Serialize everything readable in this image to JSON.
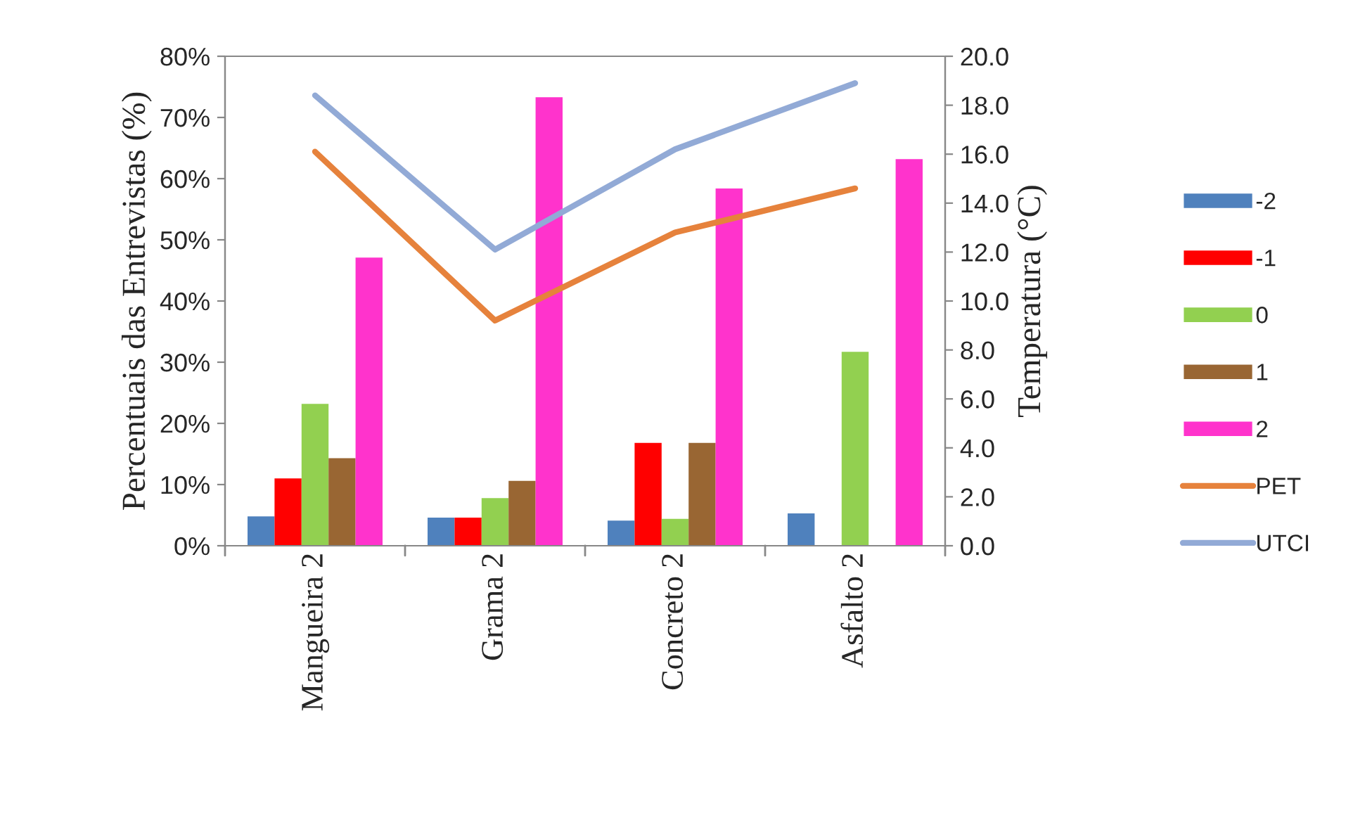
{
  "chart_data": {
    "type": "bar",
    "categories": [
      "Mangueira 2",
      "Grama 2",
      "Concreto 2",
      "Asfalto 2"
    ],
    "ylabel": "Percentuais das Entrevistas (%)",
    "y2label": "Temperatura (°C)",
    "ylim": [
      0,
      80
    ],
    "yticks": [
      {
        "value": 0,
        "label": "0%"
      },
      {
        "value": 10,
        "label": "10%"
      },
      {
        "value": 20,
        "label": "20%"
      },
      {
        "value": 30,
        "label": "30%"
      },
      {
        "value": 40,
        "label": "40%"
      },
      {
        "value": 50,
        "label": "50%"
      },
      {
        "value": 60,
        "label": "60%"
      },
      {
        "value": 70,
        "label": "70%"
      },
      {
        "value": 80,
        "label": "80%"
      }
    ],
    "y2lim": [
      0,
      20
    ],
    "y2ticks": [
      {
        "value": 0,
        "label": "0.0"
      },
      {
        "value": 2,
        "label": "2.0"
      },
      {
        "value": 4,
        "label": "4.0"
      },
      {
        "value": 6,
        "label": "6.0"
      },
      {
        "value": 8,
        "label": "8.0"
      },
      {
        "value": 10,
        "label": "10.0"
      },
      {
        "value": 12,
        "label": "12.0"
      },
      {
        "value": 14,
        "label": "14.0"
      },
      {
        "value": 16,
        "label": "16.0"
      },
      {
        "value": 18,
        "label": "18.0"
      },
      {
        "value": 20,
        "label": "20.0"
      }
    ],
    "grid": false,
    "legend": "right",
    "series": [
      {
        "name": "-2",
        "color": "#4f81bd",
        "values": [
          4.8,
          4.6,
          4.1,
          5.3
        ]
      },
      {
        "name": "-1",
        "color": "#ff0000",
        "values": [
          11.0,
          4.6,
          16.8,
          0
        ]
      },
      {
        "name": "0",
        "color": "#92d050",
        "values": [
          23.2,
          7.8,
          4.4,
          31.7
        ]
      },
      {
        "name": "1",
        "color": "#996633",
        "values": [
          14.3,
          10.6,
          16.8,
          0
        ]
      },
      {
        "name": "2",
        "color": "#ff33cc",
        "values": [
          47.1,
          73.3,
          58.4,
          63.2
        ]
      },
      {
        "name": "PET",
        "type": "line",
        "axis": "y2",
        "color": "#e6823c",
        "values": [
          16.1,
          9.2,
          12.8,
          14.6
        ]
      },
      {
        "name": "UTCI",
        "type": "line",
        "axis": "y2",
        "color": "#92aad6",
        "values": [
          18.4,
          12.1,
          16.2,
          18.9
        ]
      }
    ]
  }
}
